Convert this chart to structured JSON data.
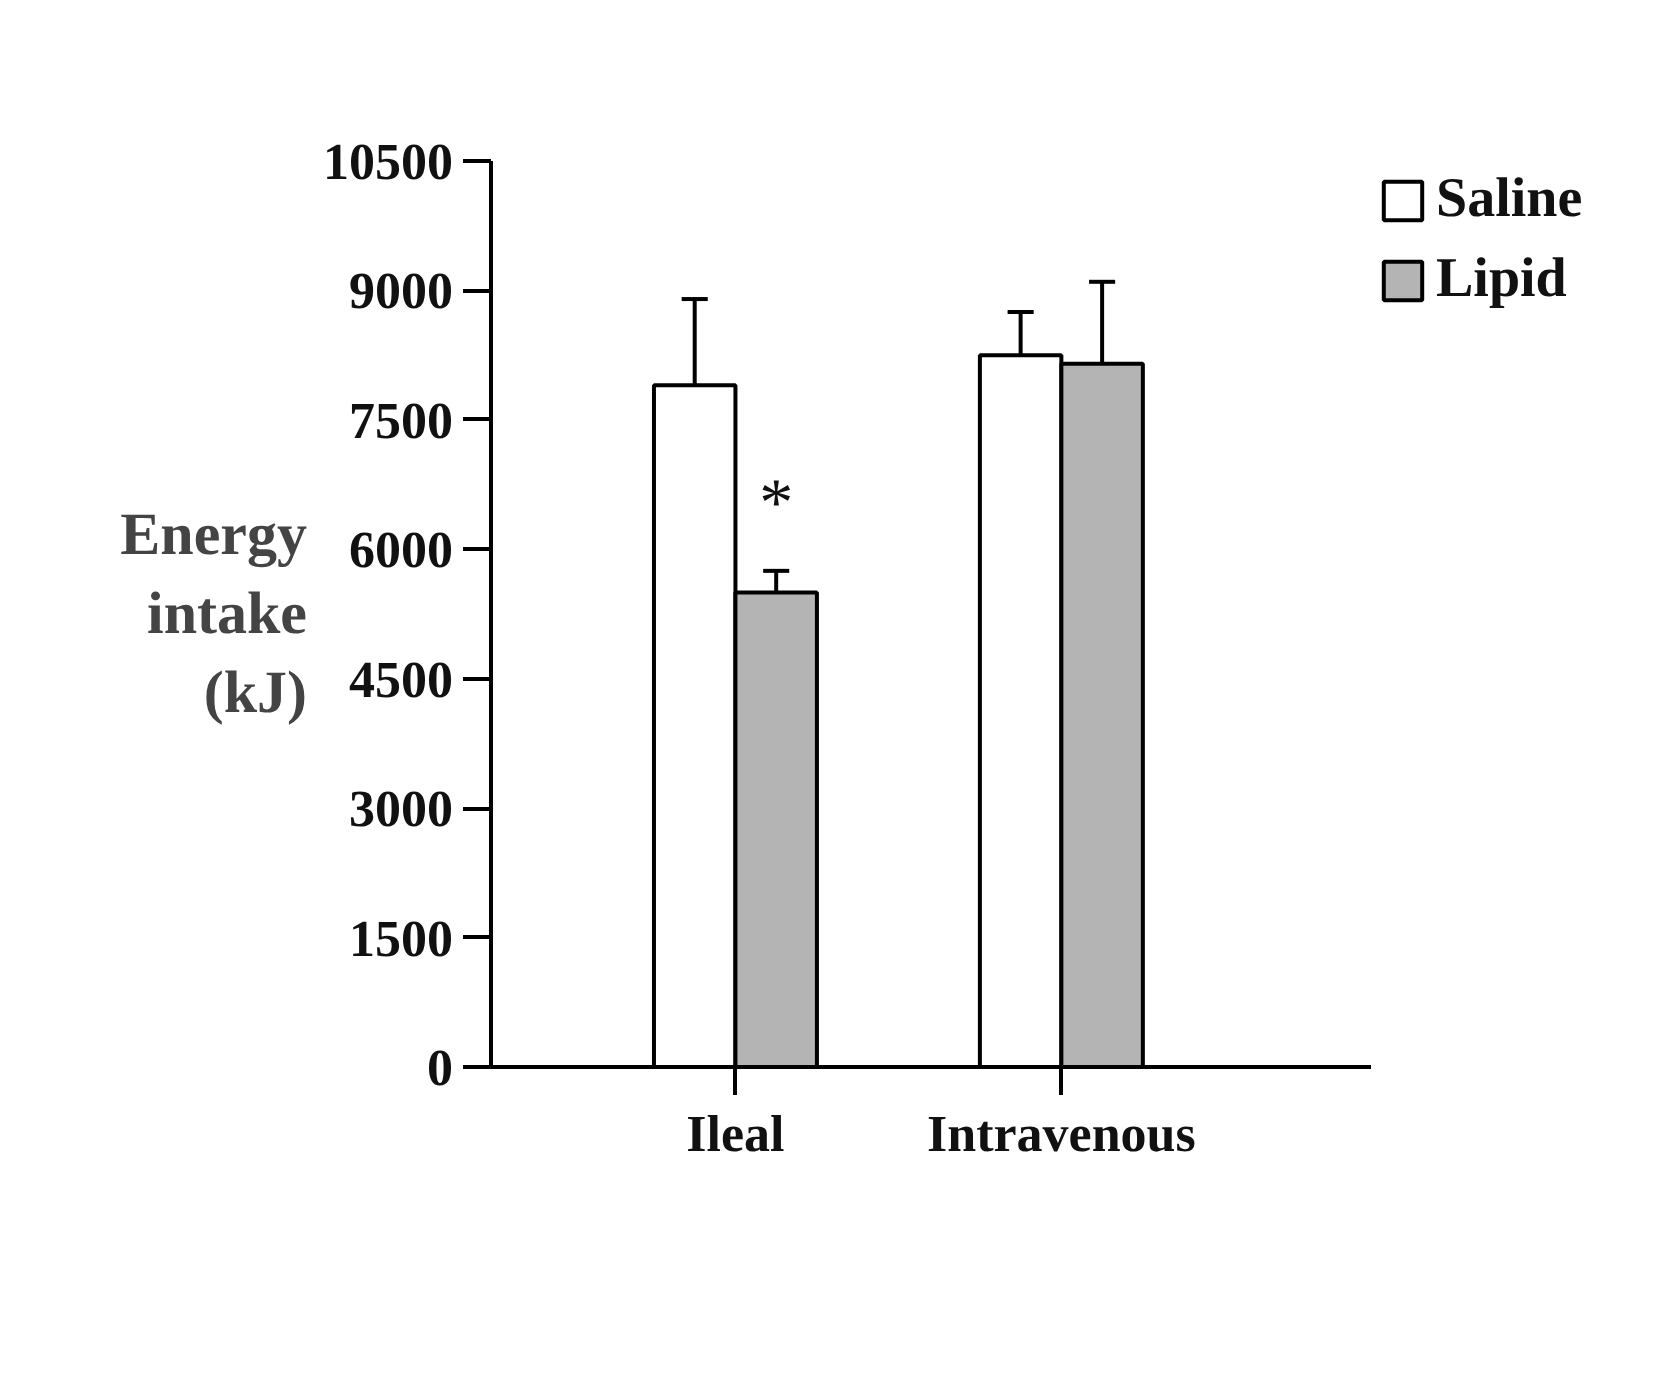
{
  "chart_data": {
    "type": "bar",
    "ylabel": "Energy\nintake\n(kJ)",
    "categories": [
      "Ileal",
      "Intravenous"
    ],
    "series": [
      {
        "name": "Saline",
        "color": "#ffffff",
        "values": [
          7900,
          8250
        ],
        "errors": [
          [
            7900,
            8900
          ],
          [
            8250,
            8750
          ]
        ]
      },
      {
        "name": "Lipid",
        "color": "#b4b4b4",
        "values": [
          5500,
          8150
        ],
        "errors": [
          [
            5500,
            5750
          ],
          [
            8150,
            9100
          ]
        ]
      }
    ],
    "ylim": [
      0,
      10500
    ],
    "yticks": [
      0,
      1500,
      3000,
      4500,
      6000,
      7500,
      9000,
      10500
    ],
    "annotations": [
      {
        "text": "*",
        "x": "Ileal",
        "y": 6100
      }
    ],
    "grid": false,
    "legend": "top right"
  }
}
